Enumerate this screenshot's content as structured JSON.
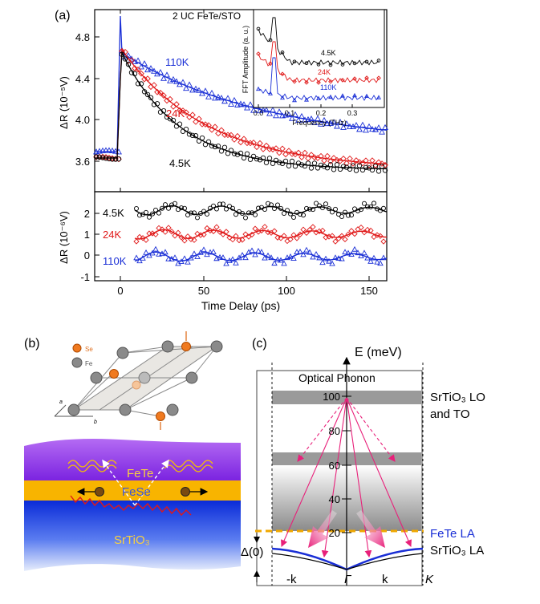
{
  "panel_labels": {
    "a": "(a)",
    "b": "(b)",
    "c": "(c)"
  },
  "panel_a": {
    "title": "2 UC FeTe/STO",
    "colors": {
      "k110": "#1a2fd6",
      "k24": "#e01818",
      "k4_5": "#000000"
    },
    "top": {
      "ylabel": "ΔR (10⁻⁵V)",
      "yticks": [
        "3.6",
        "4.0",
        "4.4",
        "4.8"
      ],
      "labels": {
        "k110": "110K",
        "k24": "24K",
        "k4_5": "4.5K"
      }
    },
    "bottom": {
      "ylabel": "ΔR (10⁻⁶V)",
      "yticks": [
        "-1",
        "0",
        "1",
        "2"
      ],
      "labels": {
        "k4_5": "4.5K",
        "k24": "24K",
        "k110": "110K"
      },
      "xticks": [
        "0",
        "50",
        "100",
        "150"
      ],
      "xlabel": "Time Delay (ps)"
    },
    "inset": {
      "ylabel": "FFT Amplitude (a. u.)",
      "xlabel": "Frequency (THz)",
      "xticks": [
        "0.0",
        "0.1",
        "0.2",
        "0.3"
      ],
      "labels": {
        "k4_5": "4.5K",
        "k24": "24K",
        "k110": "110K"
      }
    }
  },
  "panel_b": {
    "legend": {
      "se": "Se",
      "fe": "Fe"
    },
    "axes": {
      "a": "a",
      "b": "b"
    },
    "layers": {
      "fete": "FeTe",
      "fese": "FeSe",
      "srtio3": "SrTiO₃"
    }
  },
  "panel_c": {
    "axis_title": "E (meV)",
    "yticks": [
      "100",
      "80",
      "60",
      "40",
      "20"
    ],
    "optical_phonon": "Optical Phonon",
    "srtio3_lo_to": [
      "SrTiO₃ LO",
      "and TO"
    ],
    "fete_la": "FeTe LA",
    "srtio3_la": "SrTiO₃ LA",
    "gap": "Δ(0)",
    "kpoints": [
      "-k",
      "Γ",
      "k",
      "K"
    ],
    "colors": {
      "fete_la": "#1a2fd6",
      "arrows": "#e8207a",
      "dashed": "#f0a800"
    }
  }
}
